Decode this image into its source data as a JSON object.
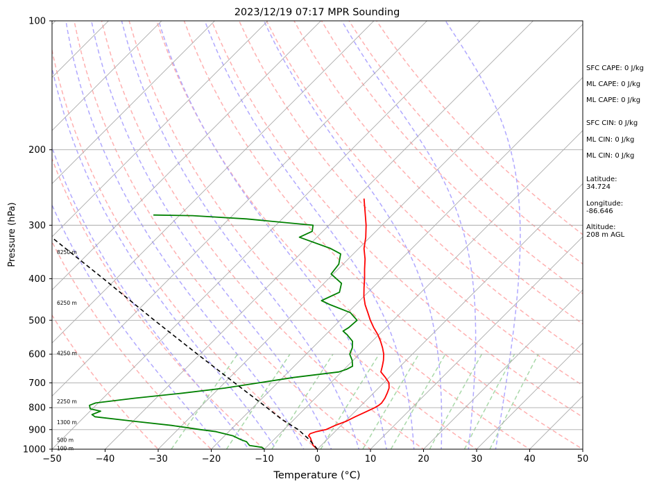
{
  "chart_data": {
    "type": "line",
    "title": "2023/12/19 07:17 MPR Sounding",
    "xlabel": "Temperature (°C)",
    "ylabel": "Pressure (hPa)",
    "xlim": [
      -50,
      50
    ],
    "ylim": [
      1000,
      100
    ],
    "y_scale": "log",
    "skew_degrees": 45,
    "grid": true,
    "x_ticks": [
      -50,
      -40,
      -30,
      -20,
      -10,
      0,
      10,
      20,
      30,
      40,
      50
    ],
    "x_tick_labels": [
      "−50",
      "−40",
      "−30",
      "−20",
      "−10",
      "0",
      "10",
      "20",
      "30",
      "40",
      "50"
    ],
    "y_ticks": [
      1000,
      900,
      800,
      700,
      600,
      500,
      400,
      300,
      200,
      100
    ],
    "y_tick_labels": [
      "1000",
      "900",
      "800",
      "700",
      "600",
      "500",
      "400",
      "300",
      "200",
      "100"
    ],
    "series": [
      {
        "role": "temperature",
        "color": "#ff0000",
        "points": [
          [
            1000,
            0
          ],
          [
            980,
            -1.5
          ],
          [
            960,
            -2.5
          ],
          [
            940,
            -3.5
          ],
          [
            930,
            -4.2
          ],
          [
            920,
            -4.3
          ],
          [
            910,
            -3.5
          ],
          [
            900,
            -2.1
          ],
          [
            880,
            -1.1
          ],
          [
            860,
            0.2
          ],
          [
            840,
            1.0
          ],
          [
            820,
            2.0
          ],
          [
            800,
            3.0
          ],
          [
            790,
            3.3
          ],
          [
            780,
            3.4
          ],
          [
            760,
            3.1
          ],
          [
            740,
            2.6
          ],
          [
            720,
            2.0
          ],
          [
            700,
            1.0
          ],
          [
            680,
            -0.7
          ],
          [
            660,
            -2.6
          ],
          [
            640,
            -3.4
          ],
          [
            620,
            -4.3
          ],
          [
            600,
            -5.4
          ],
          [
            580,
            -6.8
          ],
          [
            560,
            -8.4
          ],
          [
            540,
            -10.2
          ],
          [
            520,
            -12.3
          ],
          [
            500,
            -14.3
          ],
          [
            480,
            -16.2
          ],
          [
            460,
            -18.2
          ],
          [
            440,
            -20.0
          ],
          [
            420,
            -21.6
          ],
          [
            400,
            -23.2
          ],
          [
            380,
            -25.0
          ],
          [
            360,
            -26.8
          ],
          [
            340,
            -29.0
          ],
          [
            320,
            -30.8
          ],
          [
            300,
            -33.0
          ],
          [
            280,
            -35.6
          ],
          [
            260,
            -38.4
          ]
        ]
      },
      {
        "role": "dewpoint",
        "color": "#008000",
        "points": [
          [
            1000,
            -10
          ],
          [
            990,
            -10.8
          ],
          [
            980,
            -13.5
          ],
          [
            960,
            -14.8
          ],
          [
            950,
            -16.2
          ],
          [
            930,
            -18.5
          ],
          [
            910,
            -22.4
          ],
          [
            900,
            -25.7
          ],
          [
            880,
            -32.0
          ],
          [
            860,
            -40.0
          ],
          [
            840,
            -48.0
          ],
          [
            830,
            -49.0
          ],
          [
            815,
            -48.0
          ],
          [
            805,
            -50.4
          ],
          [
            790,
            -51.2
          ],
          [
            780,
            -50.5
          ],
          [
            760,
            -44.0
          ],
          [
            740,
            -36.0
          ],
          [
            720,
            -29.0
          ],
          [
            700,
            -23.5
          ],
          [
            680,
            -18.0
          ],
          [
            660,
            -10.5
          ],
          [
            650,
            -9.5
          ],
          [
            640,
            -9.0
          ],
          [
            620,
            -10.2
          ],
          [
            600,
            -11.8
          ],
          [
            580,
            -12.5
          ],
          [
            560,
            -13.7
          ],
          [
            540,
            -16.0
          ],
          [
            530,
            -17.4
          ],
          [
            520,
            -17.0
          ],
          [
            500,
            -16.8
          ],
          [
            480,
            -19.5
          ],
          [
            460,
            -24.8
          ],
          [
            450,
            -27.2
          ],
          [
            430,
            -25.4
          ],
          [
            410,
            -26.7
          ],
          [
            390,
            -30.4
          ],
          [
            370,
            -30.8
          ],
          [
            350,
            -32.4
          ],
          [
            340,
            -35.3
          ],
          [
            320,
            -43.3
          ],
          [
            310,
            -42.0
          ],
          [
            300,
            -43.0
          ],
          [
            290,
            -56.7
          ],
          [
            285,
            -67.5
          ],
          [
            284,
            -75.0
          ]
        ]
      },
      {
        "role": "parcel",
        "color": "#000000",
        "dash": "6,4",
        "points": [
          [
            1000,
            0
          ],
          [
            950,
            -3.3
          ],
          [
            900,
            -7.3
          ],
          [
            850,
            -12.5
          ],
          [
            800,
            -17.3
          ],
          [
            700,
            -28.1
          ],
          [
            600,
            -40.5
          ],
          [
            500,
            -55.0
          ],
          [
            400,
            -72.4
          ],
          [
            320,
            -90.0
          ]
        ]
      }
    ],
    "background_lines": {
      "isotherms_c": [
        -140,
        -130,
        -120,
        -110,
        -100,
        -90,
        -80,
        -70,
        -60,
        -50,
        -40,
        -30,
        -20,
        -10,
        0,
        10,
        20,
        30,
        40,
        50
      ],
      "dry_adiabats_c": [
        -30,
        -20,
        -10,
        0,
        10,
        20,
        30,
        40,
        50,
        60,
        70,
        80,
        90,
        100,
        110,
        120
      ],
      "moist_adiabats_c": [
        -15,
        -10,
        -5,
        0,
        5,
        10,
        15,
        20,
        25,
        30,
        35
      ],
      "mixing_ratios_gkg": [
        0.4,
        1,
        2,
        4,
        7,
        10,
        16,
        24,
        32
      ],
      "isotherm_color": "#aaaaaa",
      "dry_adiabat_color": "#ffb0b0",
      "moist_adiabat_color": "#b0a8ff",
      "mixing_ratio_color": "#a8d8a8"
    },
    "height_annotations": [
      {
        "label": "100 m",
        "pressure": 997
      },
      {
        "label": "500 m",
        "pressure": 953
      },
      {
        "label": "1300 m",
        "pressure": 866
      },
      {
        "label": "2250 m",
        "pressure": 775
      },
      {
        "label": "4250 m",
        "pressure": 597
      },
      {
        "label": "6250 m",
        "pressure": 456
      },
      {
        "label": "8250 m",
        "pressure": 347
      }
    ]
  },
  "side_stats": {
    "sfc_cape": "SFC CAPE: 0 J/kg",
    "ml_cape_1": "ML CAPE: 0 J/kg",
    "ml_cape_2": "ML CAPE: 0 J/kg",
    "sfc_cin": "SFC CIN: 0 J/kg",
    "ml_cin_1": "ML CIN: 0 J/kg",
    "ml_cin_2": "ML CIN: 0 J/kg",
    "latitude_label": "Latitude:",
    "latitude_value": "34.724",
    "longitude_label": "Longitude:",
    "longitude_value": "-86.646",
    "altitude_label": "Altitude:",
    "altitude_value": "208 m AGL"
  }
}
